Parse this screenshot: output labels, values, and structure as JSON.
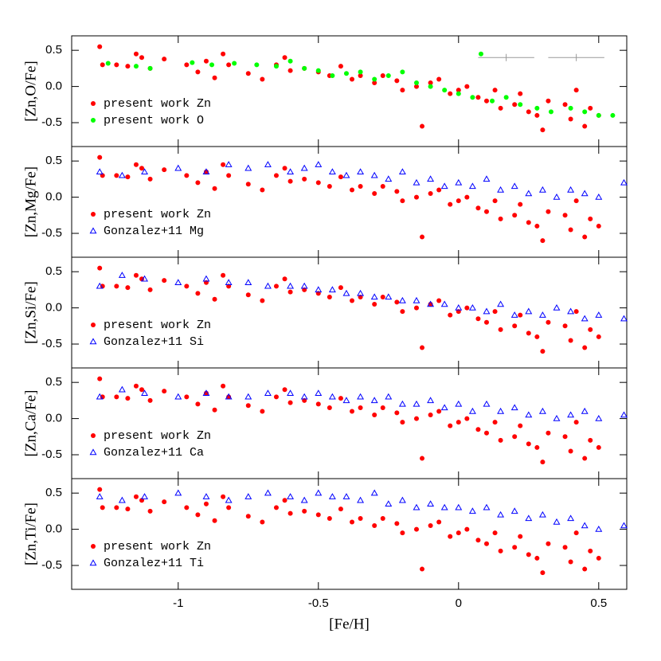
{
  "chart_data": [
    {
      "type": "scatter",
      "ylabel": "[Zn,O/Fe]",
      "xlim": [
        -1.38,
        0.6
      ],
      "xticks": [
        -1,
        -0.5,
        0,
        0.5
      ],
      "ylim": [
        -0.83,
        0.7
      ],
      "yticks": [
        -0.5,
        {
          "value": 0,
          "label": "0.0"
        },
        0.5
      ],
      "error_bars": [
        {
          "x": 0.17,
          "y": 0.4,
          "xerr": 0.1,
          "yerr": 0.05
        },
        {
          "x": 0.42,
          "y": 0.4,
          "xerr": 0.1,
          "yerr": 0.05
        }
      ],
      "error_color": "#999999",
      "series": [
        {
          "name": "present work Zn",
          "color": "#ff0000",
          "marker": "circle",
          "x": [
            -1.28,
            -1.27,
            -1.22,
            -1.18,
            -1.15,
            -1.13,
            -1.1,
            -1.05,
            -0.97,
            -0.93,
            -0.9,
            -0.87,
            -0.84,
            -0.82,
            -0.75,
            -0.7,
            -0.65,
            -0.62,
            -0.6,
            -0.55,
            -0.5,
            -0.46,
            -0.42,
            -0.38,
            -0.35,
            -0.3,
            -0.27,
            -0.22,
            -0.2,
            -0.15,
            -0.13,
            -0.1,
            -0.07,
            -0.03,
            0.0,
            0.03,
            0.07,
            0.1,
            0.13,
            0.15,
            0.2,
            0.22,
            0.25,
            0.28,
            0.3,
            0.32,
            0.38,
            0.4,
            0.42,
            0.45,
            0.47,
            0.5
          ],
          "values": [
            0.55,
            0.3,
            0.3,
            0.28,
            0.45,
            0.4,
            0.25,
            0.38,
            0.3,
            0.2,
            0.35,
            0.12,
            0.45,
            0.3,
            0.18,
            0.1,
            0.3,
            0.4,
            0.22,
            0.25,
            0.2,
            0.15,
            0.28,
            0.1,
            0.15,
            0.05,
            0.15,
            0.08,
            -0.05,
            0.0,
            -0.55,
            0.05,
            0.1,
            -0.1,
            -0.05,
            0.0,
            -0.15,
            -0.2,
            -0.05,
            -0.3,
            -0.25,
            -0.1,
            -0.35,
            -0.4,
            -0.6,
            -0.2,
            -0.25,
            -0.45,
            -0.05,
            -0.55,
            -0.3,
            -0.4
          ]
        },
        {
          "name": "present work O",
          "color": "#00ff00",
          "marker": "circle",
          "x": [
            -1.25,
            -1.15,
            -1.1,
            -0.95,
            -0.88,
            -0.8,
            -0.72,
            -0.65,
            -0.6,
            -0.55,
            -0.5,
            -0.45,
            -0.4,
            -0.35,
            -0.3,
            -0.25,
            -0.2,
            -0.15,
            -0.1,
            -0.05,
            0.0,
            0.05,
            0.08,
            0.12,
            0.17,
            0.22,
            0.28,
            0.33,
            0.4,
            0.45,
            0.5,
            0.55
          ],
          "values": [
            0.32,
            0.28,
            0.25,
            0.33,
            0.3,
            0.32,
            0.3,
            0.28,
            0.35,
            0.25,
            0.22,
            0.15,
            0.18,
            0.2,
            0.1,
            0.15,
            0.2,
            0.05,
            0.0,
            -0.05,
            -0.1,
            -0.15,
            0.45,
            -0.2,
            -0.15,
            -0.25,
            -0.3,
            -0.35,
            -0.3,
            -0.35,
            -0.4,
            -0.4
          ]
        }
      ]
    },
    {
      "type": "scatter",
      "ylabel": "[Zn,Mg/Fe]",
      "xlim": [
        -1.38,
        0.6
      ],
      "xticks": [
        -1,
        -0.5,
        0,
        0.5
      ],
      "ylim": [
        -0.83,
        0.7
      ],
      "yticks": [
        -0.5,
        {
          "value": 0,
          "label": "0.0"
        },
        0.5
      ],
      "series": [
        {
          "name": "present work Zn",
          "color": "#ff0000",
          "marker": "circle",
          "x": [
            -1.28,
            -1.27,
            -1.22,
            -1.18,
            -1.15,
            -1.13,
            -1.1,
            -1.05,
            -0.97,
            -0.93,
            -0.9,
            -0.87,
            -0.84,
            -0.82,
            -0.75,
            -0.7,
            -0.65,
            -0.62,
            -0.6,
            -0.55,
            -0.5,
            -0.46,
            -0.42,
            -0.38,
            -0.35,
            -0.3,
            -0.27,
            -0.22,
            -0.2,
            -0.15,
            -0.13,
            -0.1,
            -0.07,
            -0.03,
            0.0,
            0.03,
            0.07,
            0.1,
            0.13,
            0.15,
            0.2,
            0.22,
            0.25,
            0.28,
            0.3,
            0.32,
            0.38,
            0.4,
            0.42,
            0.45,
            0.47,
            0.5
          ],
          "values": [
            0.55,
            0.3,
            0.3,
            0.28,
            0.45,
            0.4,
            0.25,
            0.38,
            0.3,
            0.2,
            0.35,
            0.12,
            0.45,
            0.3,
            0.18,
            0.1,
            0.3,
            0.4,
            0.22,
            0.25,
            0.2,
            0.15,
            0.28,
            0.1,
            0.15,
            0.05,
            0.15,
            0.08,
            -0.05,
            0.0,
            -0.55,
            0.05,
            0.1,
            -0.1,
            -0.05,
            0.0,
            -0.15,
            -0.2,
            -0.05,
            -0.3,
            -0.25,
            -0.1,
            -0.35,
            -0.4,
            -0.6,
            -0.2,
            -0.25,
            -0.45,
            -0.05,
            -0.55,
            -0.3,
            -0.4
          ]
        },
        {
          "name": "Gonzalez+11 Mg",
          "color": "#0000ff",
          "marker": "triangle",
          "x": [
            -1.28,
            -1.2,
            -1.12,
            -1.0,
            -0.9,
            -0.82,
            -0.75,
            -0.68,
            -0.6,
            -0.55,
            -0.5,
            -0.45,
            -0.4,
            -0.35,
            -0.3,
            -0.25,
            -0.2,
            -0.15,
            -0.1,
            -0.05,
            0.0,
            0.05,
            0.1,
            0.15,
            0.2,
            0.25,
            0.3,
            0.35,
            0.4,
            0.45,
            0.5,
            0.59
          ],
          "values": [
            0.35,
            0.3,
            0.35,
            0.4,
            0.35,
            0.45,
            0.4,
            0.45,
            0.35,
            0.4,
            0.45,
            0.35,
            0.3,
            0.35,
            0.3,
            0.25,
            0.35,
            0.2,
            0.25,
            0.15,
            0.2,
            0.15,
            0.25,
            0.1,
            0.15,
            0.05,
            0.1,
            0.0,
            0.1,
            0.05,
            0.0,
            0.2
          ]
        }
      ]
    },
    {
      "type": "scatter",
      "ylabel": "[Zn,Si/Fe]",
      "xlim": [
        -1.38,
        0.6
      ],
      "xticks": [
        -1,
        -0.5,
        0,
        0.5
      ],
      "ylim": [
        -0.83,
        0.7
      ],
      "yticks": [
        -0.5,
        {
          "value": 0,
          "label": "0.0"
        },
        0.5
      ],
      "series": [
        {
          "name": "present work Zn",
          "color": "#ff0000",
          "marker": "circle",
          "x": [
            -1.28,
            -1.27,
            -1.22,
            -1.18,
            -1.15,
            -1.13,
            -1.1,
            -1.05,
            -0.97,
            -0.93,
            -0.9,
            -0.87,
            -0.84,
            -0.82,
            -0.75,
            -0.7,
            -0.65,
            -0.62,
            -0.6,
            -0.55,
            -0.5,
            -0.46,
            -0.42,
            -0.38,
            -0.35,
            -0.3,
            -0.27,
            -0.22,
            -0.2,
            -0.15,
            -0.13,
            -0.1,
            -0.07,
            -0.03,
            0.0,
            0.03,
            0.07,
            0.1,
            0.13,
            0.15,
            0.2,
            0.22,
            0.25,
            0.28,
            0.3,
            0.32,
            0.38,
            0.4,
            0.42,
            0.45,
            0.47,
            0.5
          ],
          "values": [
            0.55,
            0.3,
            0.3,
            0.28,
            0.45,
            0.4,
            0.25,
            0.38,
            0.3,
            0.2,
            0.35,
            0.12,
            0.45,
            0.3,
            0.18,
            0.1,
            0.3,
            0.4,
            0.22,
            0.25,
            0.2,
            0.15,
            0.28,
            0.1,
            0.15,
            0.05,
            0.15,
            0.08,
            -0.05,
            0.0,
            -0.55,
            0.05,
            0.1,
            -0.1,
            -0.05,
            0.0,
            -0.15,
            -0.2,
            -0.05,
            -0.3,
            -0.25,
            -0.1,
            -0.35,
            -0.4,
            -0.6,
            -0.2,
            -0.25,
            -0.45,
            -0.05,
            -0.55,
            -0.3,
            -0.4
          ]
        },
        {
          "name": "Gonzalez+11 Si",
          "color": "#0000ff",
          "marker": "triangle",
          "x": [
            -1.28,
            -1.2,
            -1.12,
            -1.0,
            -0.9,
            -0.82,
            -0.75,
            -0.68,
            -0.6,
            -0.55,
            -0.5,
            -0.45,
            -0.4,
            -0.35,
            -0.3,
            -0.25,
            -0.2,
            -0.15,
            -0.1,
            -0.05,
            0.0,
            0.05,
            0.1,
            0.15,
            0.2,
            0.25,
            0.3,
            0.35,
            0.4,
            0.45,
            0.5,
            0.59
          ],
          "values": [
            0.3,
            0.45,
            0.4,
            0.35,
            0.4,
            0.35,
            0.35,
            0.3,
            0.3,
            0.3,
            0.25,
            0.25,
            0.2,
            0.2,
            0.15,
            0.15,
            0.1,
            0.1,
            0.05,
            0.05,
            0.0,
            0.0,
            -0.05,
            0.05,
            -0.1,
            -0.05,
            -0.1,
            0.0,
            -0.05,
            -0.15,
            -0.1,
            -0.15
          ]
        }
      ]
    },
    {
      "type": "scatter",
      "ylabel": "[Zn,Ca/Fe]",
      "xlim": [
        -1.38,
        0.6
      ],
      "xticks": [
        -1,
        -0.5,
        0,
        0.5
      ],
      "ylim": [
        -0.83,
        0.7
      ],
      "yticks": [
        -0.5,
        {
          "value": 0,
          "label": "0.0"
        },
        0.5
      ],
      "series": [
        {
          "name": "present work Zn",
          "color": "#ff0000",
          "marker": "circle",
          "x": [
            -1.28,
            -1.27,
            -1.22,
            -1.18,
            -1.15,
            -1.13,
            -1.1,
            -1.05,
            -0.97,
            -0.93,
            -0.9,
            -0.87,
            -0.84,
            -0.82,
            -0.75,
            -0.7,
            -0.65,
            -0.62,
            -0.6,
            -0.55,
            -0.5,
            -0.46,
            -0.42,
            -0.38,
            -0.35,
            -0.3,
            -0.27,
            -0.22,
            -0.2,
            -0.15,
            -0.13,
            -0.1,
            -0.07,
            -0.03,
            0.0,
            0.03,
            0.07,
            0.1,
            0.13,
            0.15,
            0.2,
            0.22,
            0.25,
            0.28,
            0.3,
            0.32,
            0.38,
            0.4,
            0.42,
            0.45,
            0.47,
            0.5
          ],
          "values": [
            0.55,
            0.3,
            0.3,
            0.28,
            0.45,
            0.4,
            0.25,
            0.38,
            0.3,
            0.2,
            0.35,
            0.12,
            0.45,
            0.3,
            0.18,
            0.1,
            0.3,
            0.4,
            0.22,
            0.25,
            0.2,
            0.15,
            0.28,
            0.1,
            0.15,
            0.05,
            0.15,
            0.08,
            -0.05,
            0.0,
            -0.55,
            0.05,
            0.1,
            -0.1,
            -0.05,
            0.0,
            -0.15,
            -0.2,
            -0.05,
            -0.3,
            -0.25,
            -0.1,
            -0.35,
            -0.4,
            -0.6,
            -0.2,
            -0.25,
            -0.45,
            -0.05,
            -0.55,
            -0.3,
            -0.4
          ]
        },
        {
          "name": "Gonzalez+11 Ca",
          "color": "#0000ff",
          "marker": "triangle",
          "x": [
            -1.28,
            -1.2,
            -1.12,
            -1.0,
            -0.9,
            -0.82,
            -0.75,
            -0.68,
            -0.6,
            -0.55,
            -0.5,
            -0.45,
            -0.4,
            -0.35,
            -0.3,
            -0.25,
            -0.2,
            -0.15,
            -0.1,
            -0.05,
            0.0,
            0.05,
            0.1,
            0.15,
            0.2,
            0.25,
            0.3,
            0.35,
            0.4,
            0.45,
            0.5,
            0.59
          ],
          "values": [
            0.3,
            0.4,
            0.35,
            0.3,
            0.35,
            0.3,
            0.3,
            0.35,
            0.35,
            0.3,
            0.35,
            0.3,
            0.25,
            0.3,
            0.25,
            0.3,
            0.2,
            0.2,
            0.25,
            0.15,
            0.2,
            0.1,
            0.2,
            0.1,
            0.15,
            0.05,
            0.1,
            0.0,
            0.05,
            0.1,
            0.0,
            0.05
          ]
        }
      ]
    },
    {
      "type": "scatter",
      "ylabel": "[Zn,Ti/Fe]",
      "xlabel": "[Fe/H]",
      "xlim": [
        -1.38,
        0.6
      ],
      "xticks": [
        -1,
        -0.5,
        0,
        0.5
      ],
      "ylim": [
        -0.83,
        0.7
      ],
      "yticks": [
        -0.5,
        {
          "value": 0,
          "label": "0.0"
        },
        0.5
      ],
      "series": [
        {
          "name": "present work Zn",
          "color": "#ff0000",
          "marker": "circle",
          "x": [
            -1.28,
            -1.27,
            -1.22,
            -1.18,
            -1.15,
            -1.13,
            -1.1,
            -1.05,
            -0.97,
            -0.93,
            -0.9,
            -0.87,
            -0.84,
            -0.82,
            -0.75,
            -0.7,
            -0.65,
            -0.62,
            -0.6,
            -0.55,
            -0.5,
            -0.46,
            -0.42,
            -0.38,
            -0.35,
            -0.3,
            -0.27,
            -0.22,
            -0.2,
            -0.15,
            -0.13,
            -0.1,
            -0.07,
            -0.03,
            0.0,
            0.03,
            0.07,
            0.1,
            0.13,
            0.15,
            0.2,
            0.22,
            0.25,
            0.28,
            0.3,
            0.32,
            0.38,
            0.4,
            0.42,
            0.45,
            0.47,
            0.5
          ],
          "values": [
            0.55,
            0.3,
            0.3,
            0.28,
            0.45,
            0.4,
            0.25,
            0.38,
            0.3,
            0.2,
            0.35,
            0.12,
            0.45,
            0.3,
            0.18,
            0.1,
            0.3,
            0.4,
            0.22,
            0.25,
            0.2,
            0.15,
            0.28,
            0.1,
            0.15,
            0.05,
            0.15,
            0.08,
            -0.05,
            0.0,
            -0.55,
            0.05,
            0.1,
            -0.1,
            -0.05,
            0.0,
            -0.15,
            -0.2,
            -0.05,
            -0.3,
            -0.25,
            -0.1,
            -0.35,
            -0.4,
            -0.6,
            -0.2,
            -0.25,
            -0.45,
            -0.05,
            -0.55,
            -0.3,
            -0.4
          ]
        },
        {
          "name": "Gonzalez+11 Ti",
          "color": "#0000ff",
          "marker": "triangle",
          "x": [
            -1.28,
            -1.2,
            -1.12,
            -1.0,
            -0.9,
            -0.82,
            -0.75,
            -0.68,
            -0.6,
            -0.55,
            -0.5,
            -0.45,
            -0.4,
            -0.35,
            -0.3,
            -0.25,
            -0.2,
            -0.15,
            -0.1,
            -0.05,
            0.0,
            0.05,
            0.1,
            0.15,
            0.2,
            0.25,
            0.3,
            0.35,
            0.4,
            0.45,
            0.5,
            0.59
          ],
          "values": [
            0.45,
            0.4,
            0.45,
            0.5,
            0.45,
            0.4,
            0.45,
            0.5,
            0.45,
            0.4,
            0.5,
            0.45,
            0.45,
            0.4,
            0.5,
            0.35,
            0.4,
            0.3,
            0.35,
            0.3,
            0.3,
            0.25,
            0.3,
            0.2,
            0.25,
            0.15,
            0.2,
            0.1,
            0.15,
            0.05,
            0.0,
            0.05
          ]
        }
      ]
    }
  ]
}
